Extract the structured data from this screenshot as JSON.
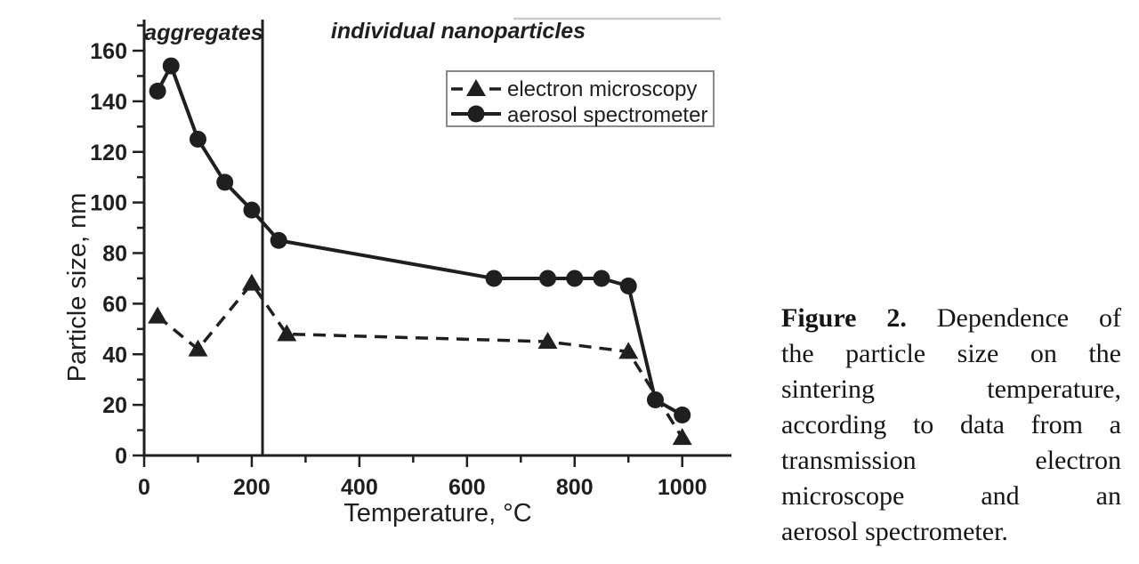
{
  "figure": {
    "region_labels": {
      "left": "aggregates",
      "right": "individual nanoparticles"
    },
    "colors": {
      "ink": "#1f1f1f",
      "artifact_line": "#c9c9c9",
      "legend_border": "#8a8a8a",
      "background": "#ffffff"
    }
  },
  "chart_data": {
    "type": "line",
    "title": "",
    "xlabel": "Temperature, °C",
    "ylabel": "Particle size, nm",
    "xlim": [
      0,
      1100
    ],
    "ylim": [
      0,
      170
    ],
    "x_major_ticks": [
      0,
      200,
      400,
      600,
      800,
      1000
    ],
    "y_major_ticks": [
      0,
      20,
      40,
      60,
      80,
      100,
      120,
      140,
      160
    ],
    "x_minor_step": 100,
    "y_minor_step": 10,
    "grid": false,
    "annotation_divider_x": 220,
    "legend": {
      "position": "upper right"
    },
    "series": [
      {
        "name": "electron microscopy",
        "marker": "triangle",
        "line": "dashed",
        "points": [
          [
            25,
            55
          ],
          [
            100,
            42
          ],
          [
            200,
            68
          ],
          [
            265,
            48
          ],
          [
            750,
            45
          ],
          [
            900,
            41
          ],
          [
            1000,
            7
          ]
        ]
      },
      {
        "name": "aerosol spectrometer",
        "marker": "circle",
        "line": "solid",
        "points": [
          [
            25,
            144
          ],
          [
            50,
            154
          ],
          [
            100,
            125
          ],
          [
            150,
            108
          ],
          [
            200,
            97
          ],
          [
            250,
            85
          ],
          [
            650,
            70
          ],
          [
            750,
            70
          ],
          [
            800,
            70
          ],
          [
            850,
            70
          ],
          [
            900,
            67
          ],
          [
            950,
            22
          ],
          [
            1000,
            16
          ]
        ]
      }
    ]
  },
  "caption": {
    "figure_label": "Figure 2.",
    "lines": [
      "Dependence of",
      "the particle size on the",
      "sintering temperature,",
      "according to data from a",
      "transmission electron",
      "microscope and an",
      "aerosol spectrometer."
    ]
  }
}
